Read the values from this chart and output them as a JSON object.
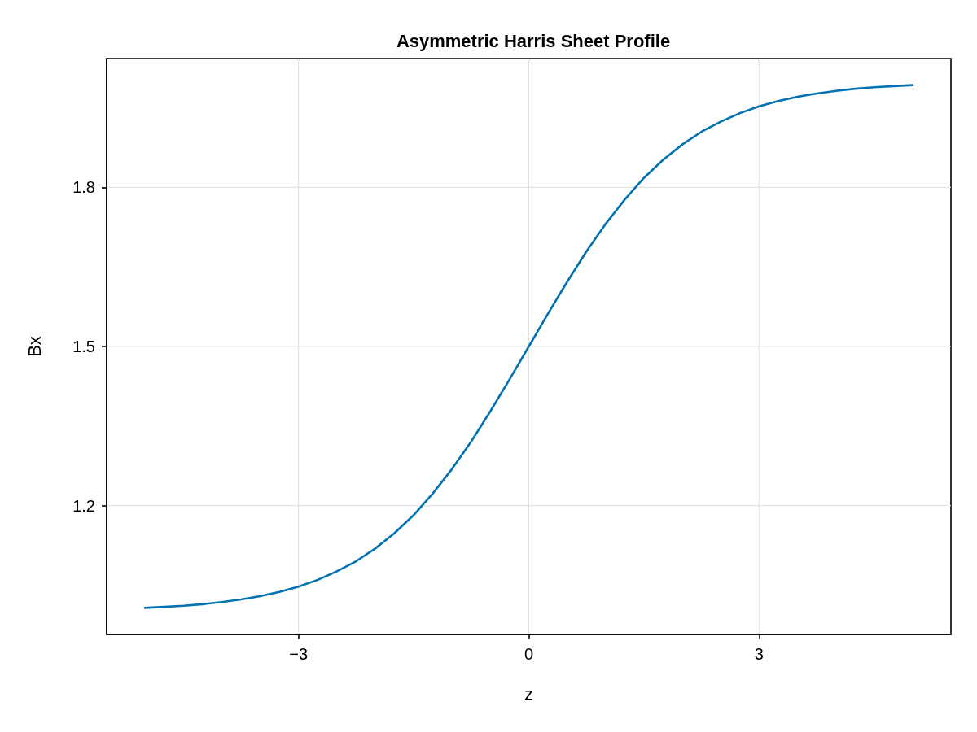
{
  "chart_data": {
    "type": "line",
    "title": "Asymmetric Harris Sheet Profile",
    "xlabel": "z",
    "ylabel": "Bx",
    "x": [
      -5,
      -4.75,
      -4.5,
      -4.25,
      -4,
      -3.75,
      -3.5,
      -3.25,
      -3,
      -2.75,
      -2.5,
      -2.25,
      -2,
      -1.75,
      -1.5,
      -1.25,
      -1,
      -0.75,
      -0.5,
      -0.25,
      0,
      0.25,
      0.5,
      0.75,
      1,
      1.25,
      1.5,
      1.75,
      2,
      2.25,
      2.5,
      2.75,
      3,
      3.25,
      3.5,
      3.75,
      4,
      4.25,
      4.5,
      4.75,
      5
    ],
    "series": [
      {
        "color": "#0072b2",
        "values": [
          1.007,
          1.009,
          1.011,
          1.014,
          1.018,
          1.023,
          1.029,
          1.037,
          1.047,
          1.06,
          1.076,
          1.095,
          1.119,
          1.148,
          1.182,
          1.223,
          1.269,
          1.321,
          1.378,
          1.438,
          1.5,
          1.562,
          1.622,
          1.679,
          1.731,
          1.777,
          1.818,
          1.852,
          1.881,
          1.905,
          1.924,
          1.94,
          1.953,
          1.963,
          1.971,
          1.977,
          1.982,
          1.986,
          1.989,
          1.991,
          1.993
        ]
      }
    ],
    "xlim": [
      -5.5,
      5.5
    ],
    "xticks": [
      {
        "value": -3,
        "label": "−3"
      },
      0,
      3
    ],
    "ylim": [
      0.957,
      2.043
    ],
    "yticks": [
      1.2,
      1.5,
      1.8
    ],
    "grid": true,
    "marker": "none",
    "line_style": "solid"
  }
}
